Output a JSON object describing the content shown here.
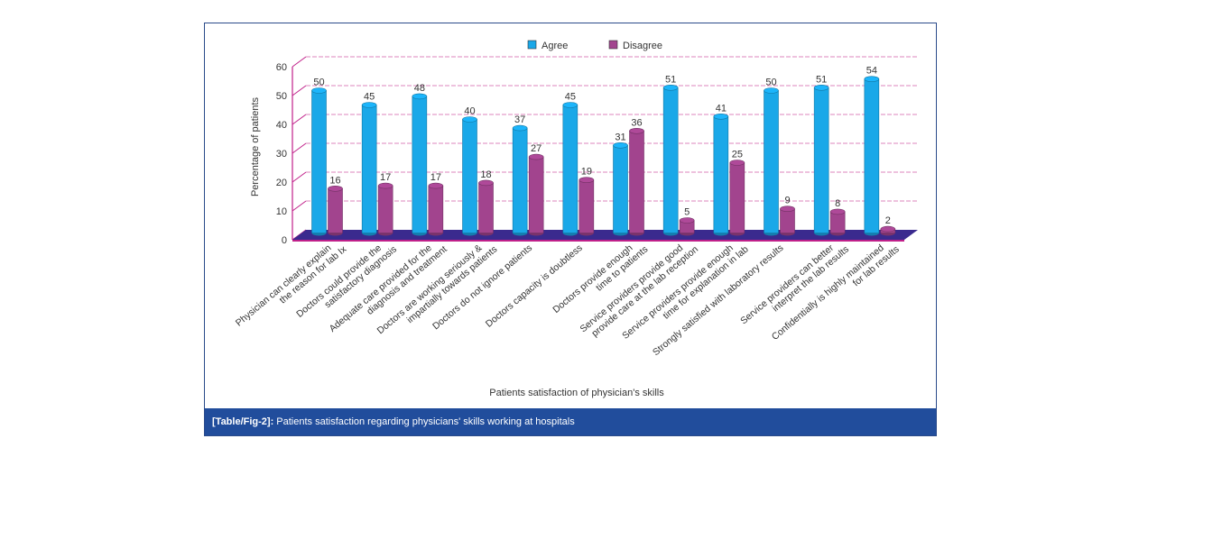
{
  "chart_data": {
    "type": "bar",
    "title": "",
    "xlabel": "Patients satisfaction of physician's skills",
    "ylabel": "Percentage of patients",
    "ylim": [
      0,
      60
    ],
    "yticks": [
      0,
      10,
      20,
      30,
      40,
      50,
      60
    ],
    "grid": true,
    "legend_position": "top-center",
    "categories": [
      [
        "Physician can clearly explain",
        "the reason for lab Ix"
      ],
      [
        "Doctors could provide the",
        "satisfactory diagnosis"
      ],
      [
        "Adequate care provided for the",
        "diagnosis and treatment"
      ],
      [
        "Doctors are working seriously &",
        "impartially towards patients"
      ],
      [
        "Doctors do not ignore patients"
      ],
      [
        "Doctors capacity is doubtless"
      ],
      [
        "Doctors provide enough",
        "time to patients"
      ],
      [
        "Service providers provide good",
        "provide care at the lab reception"
      ],
      [
        "Service providers provide enough",
        "time for explanation in lab"
      ],
      [
        "Strongly satisfied with laboratory results"
      ],
      [
        "Service providers can better",
        "interpret the lab results"
      ],
      [
        "Confidentially is highly maintained",
        "for lab results"
      ]
    ],
    "series": [
      {
        "name": "Agree",
        "color": "#1aa8e8",
        "values": [
          50,
          45,
          48,
          40,
          37,
          45,
          31,
          51,
          41,
          50,
          51,
          54
        ]
      },
      {
        "name": "Disagree",
        "color": "#a2448e",
        "values": [
          16,
          17,
          17,
          18,
          27,
          19,
          36,
          5,
          25,
          9,
          8,
          2
        ]
      }
    ]
  },
  "caption": {
    "label": "[Table/Fig-2]:",
    "text": " Patients satisfaction regarding physicians' skills working at hospitals"
  },
  "colors": {
    "grid": "#c0208a",
    "floor": "#3a2a8e",
    "caption_bg": "#214d9c"
  }
}
